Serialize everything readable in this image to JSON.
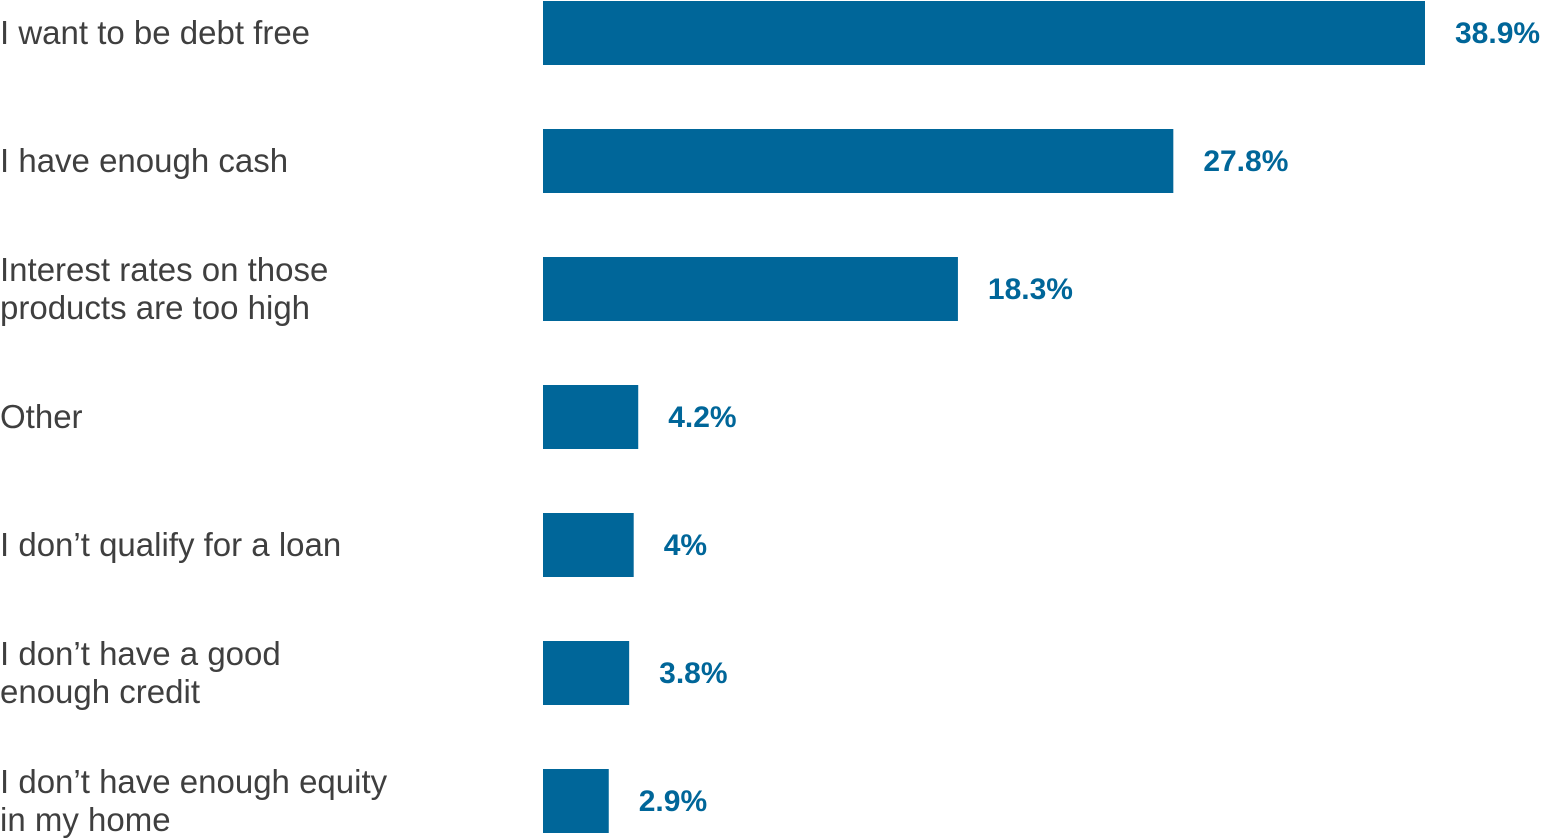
{
  "chart_data": {
    "type": "bar",
    "orientation": "horizontal",
    "categories": [
      "I want to be debt free",
      "I have enough cash",
      "Interest rates on those products are too high",
      "Other",
      "I don’t qualify for a loan",
      "I don’t have a good enough credit",
      "I don’t have enough equity in my home"
    ],
    "values": [
      38.9,
      27.8,
      18.3,
      4.2,
      4,
      3.8,
      2.9
    ],
    "value_labels": [
      "38.9%",
      "27.8%",
      "18.3%",
      "4.2%",
      "4%",
      "3.8%",
      "2.9%"
    ],
    "color": "#006699"
  }
}
